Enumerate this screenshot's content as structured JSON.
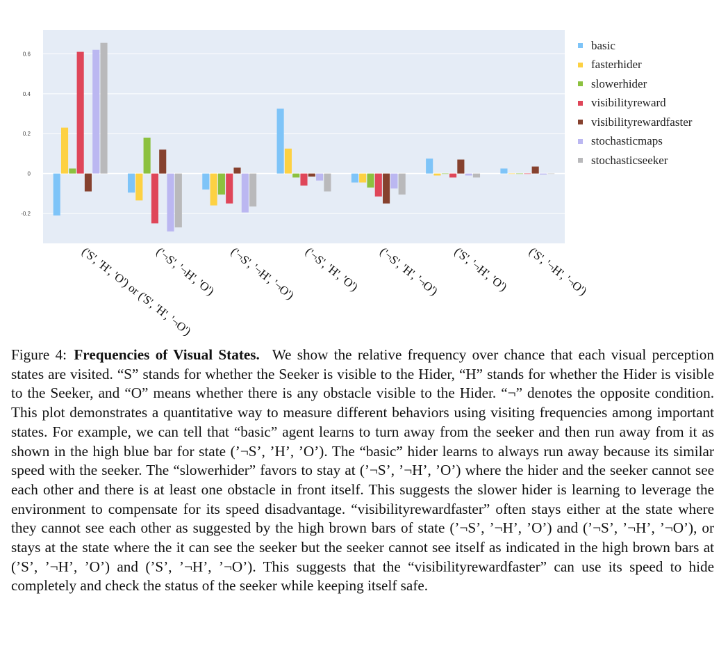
{
  "chart_data": {
    "type": "bar",
    "title": "",
    "xlabel": "",
    "ylabel": "",
    "ylim": [
      -0.35,
      0.72
    ],
    "yticks": [
      -0.2,
      0,
      0.2,
      0.4,
      0.6
    ],
    "ytick_labels": [
      "-0.2",
      "0",
      "0.2",
      "0.4",
      "0.6"
    ],
    "grid": true,
    "legend_position": "right",
    "categories": [
      "('S', 'H', 'O') or ('S', 'H', '¬O')",
      "('¬S', '¬H', 'O')",
      "('¬S', '¬H', '¬O')",
      "('¬S', 'H', 'O')",
      "('¬S', 'H', '¬O')",
      "('S', '¬H', 'O')",
      "('S', '¬H', '¬O')"
    ],
    "series": [
      {
        "name": "basic",
        "color": "#7ec4f8",
        "values": [
          -0.21,
          -0.095,
          -0.08,
          0.325,
          -0.045,
          0.075,
          0.025
        ]
      },
      {
        "name": "fasterhider",
        "color": "#fdd143",
        "values": [
          0.23,
          -0.135,
          -0.16,
          0.125,
          -0.045,
          -0.01,
          0.0
        ]
      },
      {
        "name": "slowerhider",
        "color": "#8cc13f",
        "values": [
          0.025,
          0.18,
          -0.105,
          -0.02,
          -0.07,
          0.0,
          0.0
        ]
      },
      {
        "name": "visibilityreward",
        "color": "#df4659",
        "values": [
          0.61,
          -0.25,
          -0.15,
          -0.06,
          -0.115,
          -0.02,
          0.0
        ]
      },
      {
        "name": "visibilityrewardfaster",
        "color": "#86412e",
        "values": [
          -0.09,
          0.12,
          0.03,
          -0.015,
          -0.15,
          0.07,
          0.035
        ]
      },
      {
        "name": "stochasticmaps",
        "color": "#bbb7f1",
        "values": [
          0.62,
          -0.29,
          -0.195,
          -0.035,
          -0.075,
          -0.01,
          -0.005
        ]
      },
      {
        "name": "stochasticseeker",
        "color": "#b9b9bb",
        "values": [
          0.655,
          -0.27,
          -0.165,
          -0.09,
          -0.105,
          -0.02,
          0.0
        ]
      }
    ]
  },
  "caption": {
    "label": "Figure 4:",
    "title": "Frequencies of Visual States.",
    "body": "We show the relative frequency over chance that each visual perception states are visited. “S” stands for whether the Seeker is visible to the Hider, “H” stands for whether the Hider is visible to the Seeker, and “O” means whether there is any obstacle visible to the Hider. “¬” denotes the opposite condition. This plot demonstrates a quantitative way to measure different behaviors using visiting frequencies among important states. For example, we can tell that “basic” agent learns to turn away from the seeker and then run away from it as shown in the high blue bar for state (’¬S’, ’H’, ’O’). The “basic” hider learns to always run away because its similar speed with the seeker. The “slowerhider” favors to stay at (’¬S’, ’¬H’, ’O’) where the hider and the seeker cannot see each other and there is at least one obstacle in front itself. This suggests the slower hider is learning to leverage the environment to compensate for its speed disadvantage. “visibilityrewardfaster” often stays either at the state where they cannot see each other as suggested by the high brown bars of state (’¬S’, ’¬H’, ’O’) and (’¬S’, ’¬H’, ’¬O’), or stays at the state where the it can see the seeker but the seeker cannot see itself as indicated in the high brown bars at (’S’, ’¬H’, ’O’) and (’S’, ’¬H’, ’¬O’). This suggests that the “visibilityrewardfaster” can use its speed to hide completely and check the status of the seeker while keeping itself safe."
  }
}
